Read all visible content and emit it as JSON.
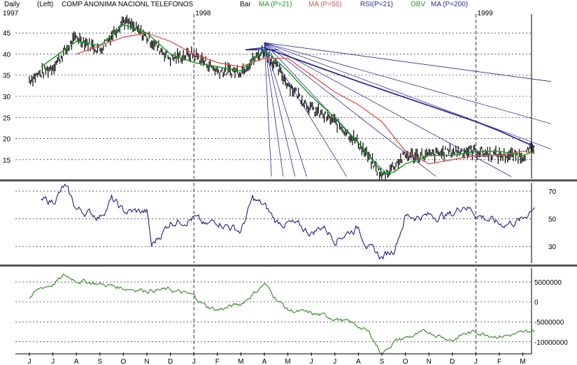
{
  "header": {
    "period": "Daily",
    "scale": "(Left)",
    "title": "COMP ANONIMA NACIONL TELEFONOS",
    "chart_type_label": "Bar",
    "indicators": [
      {
        "label": "MA (P=21)",
        "color": "#1aa01a"
      },
      {
        "label": "MA (P=55)",
        "color": "#e05050"
      },
      {
        "label": "RSI(P=21)",
        "color": "#2a2a9a"
      },
      {
        "label": "OBV",
        "color": "#1aa01a"
      },
      {
        "label": "MA (P=200)",
        "color": "#2a2a9a"
      }
    ]
  },
  "colors": {
    "price": "#000000",
    "ma21": "#1aa01a",
    "ma55": "#e05050",
    "ma200": "#2a2a9a",
    "trendlines": "#2a2a9a",
    "rsi": "#1e1e8c",
    "obv": "#2a8a1a",
    "separator": "#555555",
    "grid": "#000000"
  },
  "chart_data": [
    {
      "type": "bar",
      "panel": "price",
      "year_labels": [
        {
          "label": "1997",
          "month_index": 0
        },
        {
          "label": "1998",
          "month_index": 7
        },
        {
          "label": "1999",
          "month_index": 19
        }
      ],
      "year_markers_month_index": [
        7,
        19
      ],
      "month_labels": [
        "J",
        "J",
        "A",
        "S",
        "O",
        "N",
        "D",
        "J",
        "F",
        "M",
        "A",
        "M",
        "J",
        "J",
        "A",
        "S",
        "O",
        "N",
        "D",
        "J",
        "F",
        "M"
      ],
      "y_ticks": [
        15,
        20,
        25,
        30,
        35,
        40,
        45
      ],
      "ylim": [
        10.5,
        49.5
      ],
      "grid": true,
      "months_x": [
        0,
        1,
        2,
        3,
        4,
        5,
        6,
        7,
        8,
        9,
        10,
        11,
        12,
        13,
        14,
        15,
        16,
        17,
        18,
        19,
        20,
        21,
        21.5
      ],
      "close": [
        34,
        37,
        44,
        41,
        48,
        44,
        39,
        40,
        36,
        36,
        41,
        33,
        27,
        24,
        19,
        11,
        16,
        16,
        17,
        17,
        16,
        16,
        18
      ],
      "ma21_x": [
        0.5,
        1,
        1.5,
        2,
        3,
        4,
        5,
        6,
        7,
        8,
        9,
        10,
        11,
        12,
        13,
        14,
        15,
        15.5,
        16,
        17,
        18,
        19,
        20,
        21,
        21.5
      ],
      "ma21": [
        37,
        39,
        41,
        43,
        42,
        47,
        45,
        40,
        38,
        37,
        36,
        41,
        36,
        30,
        25,
        19,
        12,
        12,
        14,
        16,
        16,
        17,
        17,
        16,
        17
      ],
      "ma55_x": [
        2,
        3,
        4,
        5,
        6,
        7,
        8,
        9,
        10,
        11,
        12,
        13,
        14,
        15,
        16,
        17,
        18,
        19,
        20,
        21,
        21.5
      ],
      "ma55": [
        40,
        42,
        44,
        45,
        43,
        40,
        38,
        37,
        39,
        39,
        35,
        31,
        28,
        24,
        17,
        14,
        15,
        16,
        16,
        17,
        16.5
      ],
      "ma200_x": [
        9.2,
        10,
        12,
        14,
        16,
        18,
        19,
        20,
        21,
        21.5
      ],
      "ma200": [
        41,
        41.5,
        37.5,
        33.5,
        29.7,
        25.9,
        24,
        21.8,
        19.3,
        18.1
      ],
      "fan_origin": {
        "month": 10.0,
        "value": 42.7
      },
      "fan_lines": [
        {
          "month": 10.3,
          "value": 11
        },
        {
          "month": 10.8,
          "value": 11
        },
        {
          "month": 11.3,
          "value": 11
        },
        {
          "month": 11.8,
          "value": 11
        },
        {
          "month": 13.5,
          "value": 11
        },
        {
          "month": 15.3,
          "value": 11
        },
        {
          "month": 17.3,
          "value": 11
        },
        {
          "month": 20.5,
          "value": 11
        },
        {
          "month": 22.2,
          "value": 17.5
        },
        {
          "month": 22.2,
          "value": 23.5
        },
        {
          "month": 22.2,
          "value": 33.5
        }
      ],
      "horizontal_line": {
        "month_from": 9.2,
        "month_to": 10.6,
        "value": 41
      }
    },
    {
      "type": "line",
      "panel": "rsi",
      "y_ticks": [
        30,
        50,
        70
      ],
      "ylim": [
        18,
        76
      ],
      "grid": true,
      "x": [
        0.5,
        1,
        1.5,
        2,
        3,
        3.5,
        4,
        5,
        5.2,
        6,
        7,
        7.5,
        8,
        9,
        9.5,
        10,
        10.5,
        11,
        12,
        12.5,
        13,
        14,
        14.5,
        15,
        15.5,
        16,
        17,
        18,
        18.5,
        19,
        20,
        21,
        21.5
      ],
      "values": [
        62,
        63,
        73,
        57,
        52,
        64,
        55,
        55,
        30,
        48,
        51,
        44,
        49,
        41,
        64,
        59,
        48,
        47,
        40,
        45,
        36,
        44,
        28,
        22,
        28,
        52,
        52,
        53,
        61,
        54,
        46,
        49,
        61
      ]
    },
    {
      "type": "line",
      "panel": "obv",
      "y_ticks": [
        5000000,
        0,
        -5000000,
        -10000000
      ],
      "y_tick_labels": [
        "5000000",
        "0",
        "-5000000",
        "-10000000"
      ],
      "ylim": [
        -13000000,
        8500000
      ],
      "grid": true,
      "x": [
        0,
        0.5,
        1,
        1.5,
        2,
        3,
        4,
        5,
        6,
        7,
        7.5,
        8,
        9,
        9.5,
        10,
        10.5,
        11,
        12,
        13,
        14,
        14.5,
        15,
        15.5,
        16,
        17,
        18,
        18.5,
        19,
        20,
        21,
        21.5
      ],
      "values": [
        1000000,
        3500000,
        4500000,
        6500000,
        5500000,
        4500000,
        3500000,
        3000000,
        3000000,
        1500000,
        -1000000,
        -2000000,
        -500000,
        2000000,
        4500000,
        1000000,
        -2000000,
        -3000000,
        -4000000,
        -6000000,
        -8000000,
        -13000000,
        -10000000,
        -9000000,
        -7500000,
        -9500000,
        -8000000,
        -7500000,
        -8500000,
        -8000000,
        -7000000
      ]
    }
  ]
}
